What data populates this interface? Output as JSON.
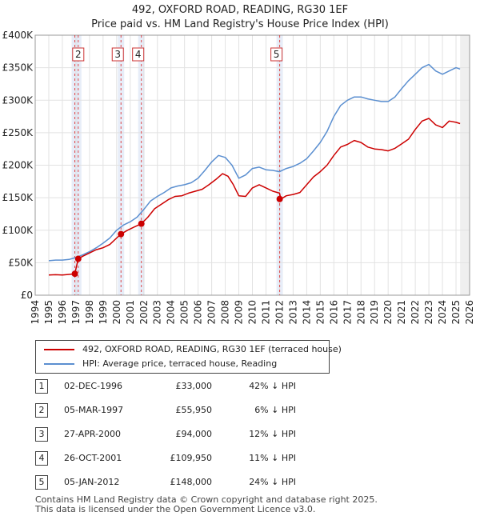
{
  "chart_data": {
    "type": "line",
    "title": "492, OXFORD ROAD, READING, RG30 1EF",
    "subtitle": "Price paid vs. HM Land Registry's House Price Index (HPI)",
    "xlabel": "",
    "ylabel": "",
    "xlim": [
      1994,
      2026
    ],
    "ylim": [
      0,
      400000
    ],
    "x_ticks": [
      "1994",
      "1995",
      "1996",
      "1997",
      "1998",
      "1999",
      "2000",
      "2001",
      "2002",
      "2003",
      "2004",
      "2005",
      "2006",
      "2007",
      "2008",
      "2009",
      "2010",
      "2011",
      "2012",
      "2013",
      "2014",
      "2015",
      "2016",
      "2017",
      "2018",
      "2019",
      "2020",
      "2021",
      "2022",
      "2023",
      "2024",
      "2025",
      "2026"
    ],
    "y_ticks": [
      {
        "value": 0,
        "label": "£0"
      },
      {
        "value": 50000,
        "label": "£50K"
      },
      {
        "value": 100000,
        "label": "£100K"
      },
      {
        "value": 150000,
        "label": "£150K"
      },
      {
        "value": 200000,
        "label": "£200K"
      },
      {
        "value": 250000,
        "label": "£250K"
      },
      {
        "value": 300000,
        "label": "£300K"
      },
      {
        "value": 350000,
        "label": "£350K"
      },
      {
        "value": 400000,
        "label": "£400K"
      }
    ],
    "grid": true,
    "series": [
      {
        "name": "492, OXFORD ROAD, READING, RG30 1EF (terraced house)",
        "color": "#cc0000",
        "x": [
          1995.0,
          1995.5,
          1996.0,
          1996.5,
          1996.92,
          1997.17,
          1997.5,
          1998.0,
          1998.5,
          1999.0,
          1999.5,
          2000.0,
          2000.32,
          2000.8,
          2001.3,
          2001.82,
          2002.3,
          2002.8,
          2003.3,
          2003.8,
          2004.3,
          2004.8,
          2005.3,
          2005.8,
          2006.3,
          2006.8,
          2007.3,
          2007.8,
          2008.2,
          2008.6,
          2009.0,
          2009.5,
          2010.0,
          2010.5,
          2011.0,
          2011.5,
          2012.0,
          2012.1,
          2012.5,
          2013.0,
          2013.5,
          2014.0,
          2014.5,
          2015.0,
          2015.5,
          2016.0,
          2016.5,
          2017.0,
          2017.5,
          2018.0,
          2018.5,
          2019.0,
          2019.5,
          2020.0,
          2020.5,
          2021.0,
          2021.5,
          2022.0,
          2022.5,
          2023.0,
          2023.5,
          2024.0,
          2024.5,
          2025.0,
          2025.3
        ],
        "y": [
          31000,
          31500,
          31000,
          32000,
          33000,
          55950,
          60000,
          65000,
          70000,
          73000,
          78000,
          88000,
          94000,
          100000,
          105000,
          109950,
          120000,
          133000,
          140000,
          147000,
          152000,
          153000,
          157000,
          160000,
          163000,
          170000,
          178000,
          187000,
          183000,
          170000,
          153000,
          152000,
          165000,
          170000,
          165000,
          160000,
          157000,
          148000,
          153000,
          155000,
          158000,
          170000,
          182000,
          190000,
          200000,
          215000,
          228000,
          232000,
          238000,
          235000,
          228000,
          225000,
          224000,
          222000,
          226000,
          233000,
          240000,
          255000,
          268000,
          272000,
          262000,
          258000,
          268000,
          266000,
          264000
        ]
      },
      {
        "name": "HPI: Average price, terraced house, Reading",
        "color": "#5b8fd0",
        "x": [
          1995.0,
          1995.5,
          1996.0,
          1996.5,
          1997.0,
          1997.5,
          1998.0,
          1998.5,
          1999.0,
          1999.5,
          2000.0,
          2000.5,
          2001.0,
          2001.5,
          2002.0,
          2002.5,
          2003.0,
          2003.5,
          2004.0,
          2004.5,
          2005.0,
          2005.5,
          2006.0,
          2006.5,
          2007.0,
          2007.5,
          2008.0,
          2008.5,
          2009.0,
          2009.5,
          2010.0,
          2010.5,
          2011.0,
          2011.5,
          2012.0,
          2012.5,
          2013.0,
          2013.5,
          2014.0,
          2014.5,
          2015.0,
          2015.5,
          2016.0,
          2016.5,
          2017.0,
          2017.5,
          2018.0,
          2018.5,
          2019.0,
          2019.5,
          2020.0,
          2020.5,
          2021.0,
          2021.5,
          2022.0,
          2022.5,
          2023.0,
          2023.5,
          2024.0,
          2024.5,
          2025.0,
          2025.3
        ],
        "y": [
          53000,
          54000,
          54000,
          55000,
          58000,
          62000,
          67000,
          73000,
          80000,
          88000,
          100000,
          108000,
          113000,
          120000,
          132000,
          145000,
          152000,
          158000,
          165000,
          168000,
          170000,
          173000,
          180000,
          192000,
          205000,
          215000,
          212000,
          200000,
          180000,
          185000,
          195000,
          197000,
          193000,
          192000,
          190000,
          195000,
          198000,
          203000,
          210000,
          222000,
          235000,
          252000,
          275000,
          292000,
          300000,
          305000,
          305000,
          302000,
          300000,
          298000,
          298000,
          305000,
          318000,
          330000,
          340000,
          350000,
          355000,
          345000,
          340000,
          345000,
          350000,
          348000
        ]
      }
    ],
    "sales": [
      {
        "id": "1",
        "date": "02-DEC-1996",
        "price": "£33,000",
        "hpi": "42% ↓ HPI",
        "x": 1996.92,
        "y": 33000,
        "show_marker_box": false
      },
      {
        "id": "2",
        "date": "05-MAR-1997",
        "price": "£55,950",
        "hpi": "6% ↓ HPI",
        "x": 1997.17,
        "y": 55950,
        "show_marker_box": true
      },
      {
        "id": "3",
        "date": "27-APR-2000",
        "price": "£94,000",
        "hpi": "12% ↓ HPI",
        "x": 2000.32,
        "y": 94000,
        "show_marker_box": true
      },
      {
        "id": "4",
        "date": "26-OCT-2001",
        "price": "£109,950",
        "hpi": "11% ↓ HPI",
        "x": 2001.82,
        "y": 109950,
        "show_marker_box": true
      },
      {
        "id": "5",
        "date": "05-JAN-2012",
        "price": "£148,000",
        "hpi": "24% ↓ HPI",
        "x": 2012.01,
        "y": 148000,
        "show_marker_box": true
      }
    ],
    "future_shading_from": 2025.3
  },
  "legend": {
    "property_label": "492, OXFORD ROAD, READING, RG30 1EF (terraced house)",
    "hpi_label": "HPI: Average price, terraced house, Reading"
  },
  "footer": {
    "line1": "Contains HM Land Registry data © Crown copyright and database right 2025.",
    "line2": "This data is licensed under the Open Government Licence v3.0."
  }
}
